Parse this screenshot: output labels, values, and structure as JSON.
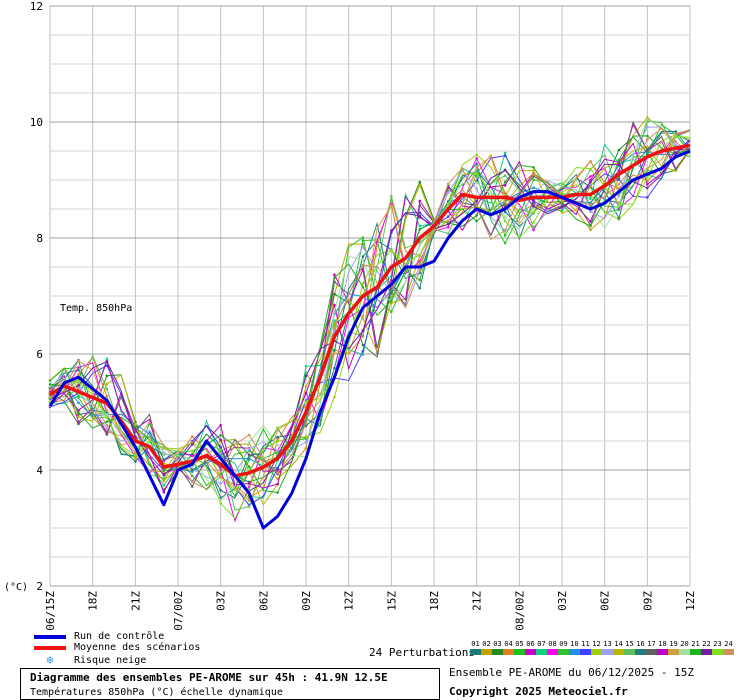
{
  "chart_data": {
    "type": "line",
    "ylabel": "(°C)",
    "ylim": [
      2,
      12
    ],
    "yticks": [
      2,
      4,
      6,
      8,
      10,
      12
    ],
    "annotation": "Temp. 850hPa",
    "x_tick_labels": [
      "06/15Z",
      "18Z",
      "21Z",
      "07/00Z",
      "03Z",
      "06Z",
      "09Z",
      "12Z",
      "15Z",
      "18Z",
      "21Z",
      "08/00Z",
      "03Z",
      "06Z",
      "09Z",
      "12Z"
    ],
    "hours": [
      0,
      1,
      2,
      3,
      4,
      5,
      6,
      7,
      8,
      9,
      10,
      11,
      12,
      13,
      14,
      15,
      16,
      17,
      18,
      19,
      20,
      21,
      22,
      23,
      24,
      25,
      26,
      27,
      28,
      29,
      30,
      31,
      32,
      33,
      34,
      35,
      36,
      37,
      38,
      39,
      40,
      41,
      42,
      43,
      44,
      45
    ],
    "series": [
      {
        "name": "Run de contrôle",
        "color": "#0000dd",
        "values": [
          5.1,
          5.5,
          5.6,
          5.4,
          5.2,
          4.8,
          4.4,
          3.9,
          3.4,
          4.0,
          4.1,
          4.5,
          4.2,
          3.9,
          3.6,
          3.0,
          3.2,
          3.6,
          4.2,
          5.0,
          5.6,
          6.3,
          6.8,
          7.0,
          7.2,
          7.5,
          7.5,
          7.6,
          8.0,
          8.3,
          8.5,
          8.4,
          8.5,
          8.7,
          8.8,
          8.8,
          8.7,
          8.6,
          8.5,
          8.6,
          8.8,
          9.0,
          9.1,
          9.2,
          9.4,
          9.5
        ]
      },
      {
        "name": "Moyenne des scénarios",
        "color": "#ee1111",
        "values": [
          5.3,
          5.45,
          5.35,
          5.25,
          5.15,
          4.85,
          4.5,
          4.4,
          4.05,
          4.1,
          4.15,
          4.25,
          4.1,
          3.9,
          3.95,
          4.05,
          4.2,
          4.5,
          5.0,
          5.6,
          6.3,
          6.7,
          7.0,
          7.15,
          7.5,
          7.65,
          8.0,
          8.2,
          8.5,
          8.75,
          8.7,
          8.7,
          8.7,
          8.65,
          8.7,
          8.7,
          8.7,
          8.75,
          8.75,
          8.9,
          9.1,
          9.25,
          9.4,
          9.5,
          9.55,
          9.6
        ]
      }
    ],
    "perturbations": {
      "count_label": "24 Perturbations",
      "numbers": [
        "01",
        "02",
        "03",
        "04",
        "05",
        "06",
        "07",
        "08",
        "09",
        "10",
        "11",
        "12",
        "13",
        "14",
        "15",
        "16",
        "17",
        "18",
        "19",
        "20",
        "21",
        "22",
        "23",
        "24"
      ],
      "colors": [
        "#1a7a7a",
        "#c8a000",
        "#228b22",
        "#e08020",
        "#20c020",
        "#cc00cc",
        "#10d080",
        "#ff00ff",
        "#30c030",
        "#2090e0",
        "#4040ff",
        "#9ad010",
        "#a0a0ff",
        "#b8b800",
        "#60c060",
        "#208080",
        "#606060",
        "#c000c0",
        "#d0a040",
        "#a0e0a0",
        "#20b020",
        "#7020a0",
        "#80e020",
        "#d09060"
      ]
    },
    "legend": [
      {
        "label": "Run de contrôle",
        "color": "#0000dd"
      },
      {
        "label": "Moyenne des scénarios",
        "color": "#ee1111"
      },
      {
        "label": "Risque neige",
        "color": "#3aa0e0"
      }
    ]
  },
  "title": {
    "main": "Diagramme des ensembles PE-AROME sur 45h : 41.9N 12.5E",
    "sub": "Températures 850hPa (°C) échelle dynamique"
  },
  "run_info": "Ensemble PE-AROME du 06/12/2025 - 15Z",
  "copyright": "Copyright 2025 Meteociel.fr",
  "snow_symbol": "❄"
}
